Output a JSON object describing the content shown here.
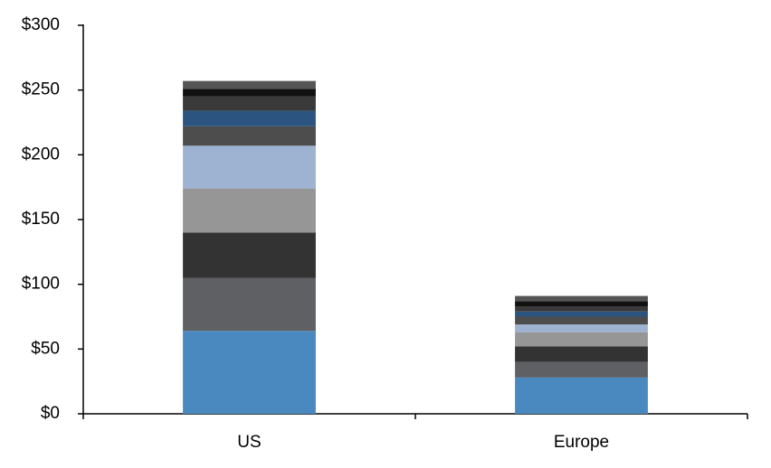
{
  "chart_data": {
    "type": "stacked_bar",
    "categories": [
      "US",
      "Europe"
    ],
    "series": [
      {
        "color": "#4a89c0",
        "values": [
          64,
          28
        ]
      },
      {
        "color": "#5f6064",
        "values": [
          41,
          12
        ]
      },
      {
        "color": "#333333",
        "values": [
          35,
          12
        ]
      },
      {
        "color": "#969696",
        "values": [
          34,
          11
        ]
      },
      {
        "color": "#9db3d1",
        "values": [
          33,
          6
        ]
      },
      {
        "color": "#4d4d4d",
        "values": [
          15,
          6
        ]
      },
      {
        "color": "#2b5580",
        "values": [
          12,
          4
        ]
      },
      {
        "color": "#3a3a3a",
        "values": [
          11,
          4
        ]
      },
      {
        "color": "#111111",
        "values": [
          6,
          4
        ]
      },
      {
        "color": "#555555",
        "values": [
          6,
          4
        ]
      }
    ],
    "ylim": [
      0,
      300
    ],
    "yticks": [
      {
        "value": 0,
        "label": "$0"
      },
      {
        "value": 50,
        "label": "$50"
      },
      {
        "value": 100,
        "label": "$100"
      },
      {
        "value": 150,
        "label": "$150"
      },
      {
        "value": 200,
        "label": "$200"
      },
      {
        "value": 250,
        "label": "$250"
      },
      {
        "value": 300,
        "label": "$300"
      }
    ]
  }
}
